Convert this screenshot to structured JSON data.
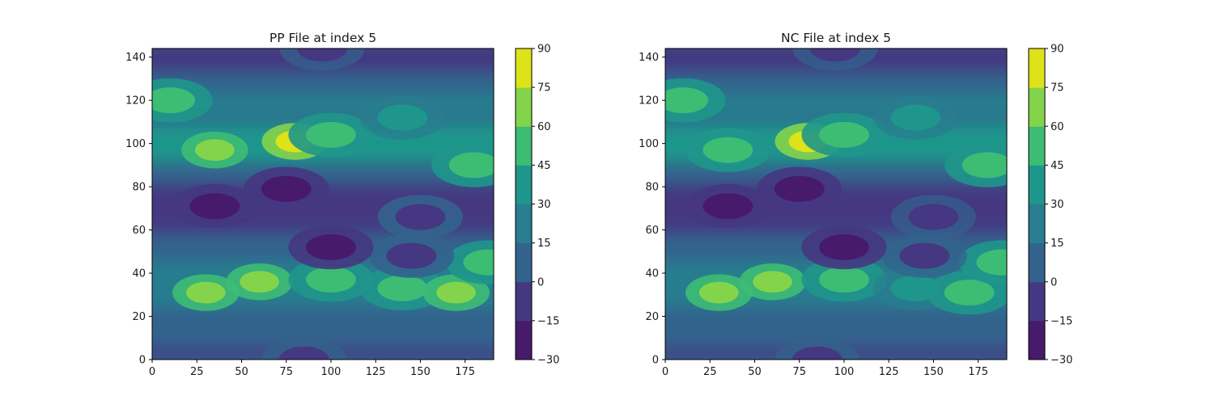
{
  "chart_data": [
    {
      "type": "heatmap",
      "subtype": "filled-contour",
      "title": "PP File at index 5",
      "xlabel": "",
      "ylabel": "",
      "xlim": [
        0,
        191
      ],
      "ylim": [
        0,
        144
      ],
      "xticks": [
        0,
        25,
        50,
        75,
        100,
        125,
        150,
        175
      ],
      "yticks": [
        0,
        20,
        40,
        60,
        80,
        100,
        120,
        140
      ],
      "colorbar": {
        "levels": [
          -30,
          -15,
          0,
          15,
          30,
          45,
          60,
          75,
          90
        ],
        "tick_labels": [
          "−30",
          "−15",
          "0",
          "15",
          "30",
          "45",
          "60",
          "75",
          "90"
        ],
        "colors": [
          "#481a6c",
          "#453781",
          "#33638d",
          "#287d8e",
          "#1f968b",
          "#3dbc74",
          "#84d44b",
          "#dde318"
        ]
      },
      "features": [
        {
          "x": 35,
          "y": 97,
          "value": 60
        },
        {
          "x": 80,
          "y": 101,
          "value": 80
        },
        {
          "x": 100,
          "y": 104,
          "value": 55
        },
        {
          "x": 140,
          "y": 112,
          "value": 40
        },
        {
          "x": 10,
          "y": 120,
          "value": 55
        },
        {
          "x": 180,
          "y": 90,
          "value": 50
        },
        {
          "x": 35,
          "y": 71,
          "value": -25
        },
        {
          "x": 75,
          "y": 79,
          "value": -25
        },
        {
          "x": 150,
          "y": 66,
          "value": -15
        },
        {
          "x": 30,
          "y": 31,
          "value": 70
        },
        {
          "x": 60,
          "y": 36,
          "value": 65
        },
        {
          "x": 100,
          "y": 37,
          "value": 50
        },
        {
          "x": 140,
          "y": 33,
          "value": 45
        },
        {
          "x": 170,
          "y": 31,
          "value": 60
        },
        {
          "x": 188,
          "y": 45,
          "value": 55
        },
        {
          "x": 145,
          "y": 48,
          "value": -15
        },
        {
          "x": 100,
          "y": 52,
          "value": -25
        },
        {
          "x": 95,
          "y": 144,
          "value": -10
        },
        {
          "x": 85,
          "y": 0,
          "value": -10
        }
      ]
    },
    {
      "type": "heatmap",
      "subtype": "filled-contour",
      "title": "NC File at index 5",
      "xlabel": "",
      "ylabel": "",
      "xlim": [
        0,
        191
      ],
      "ylim": [
        0,
        144
      ],
      "xticks": [
        0,
        25,
        50,
        75,
        100,
        125,
        150,
        175
      ],
      "yticks": [
        0,
        20,
        40,
        60,
        80,
        100,
        120,
        140
      ],
      "colorbar": {
        "levels": [
          -30,
          -15,
          0,
          15,
          30,
          45,
          60,
          75,
          90
        ],
        "tick_labels": [
          "−30",
          "−15",
          "0",
          "15",
          "30",
          "45",
          "60",
          "75",
          "90"
        ],
        "colors": [
          "#481a6c",
          "#453781",
          "#33638d",
          "#287d8e",
          "#1f968b",
          "#3dbc74",
          "#84d44b",
          "#dde318"
        ]
      },
      "features": [
        {
          "x": 35,
          "y": 97,
          "value": 58
        },
        {
          "x": 80,
          "y": 101,
          "value": 78
        },
        {
          "x": 100,
          "y": 104,
          "value": 53
        },
        {
          "x": 140,
          "y": 112,
          "value": 40
        },
        {
          "x": 10,
          "y": 120,
          "value": 53
        },
        {
          "x": 180,
          "y": 90,
          "value": 48
        },
        {
          "x": 35,
          "y": 71,
          "value": -24
        },
        {
          "x": 75,
          "y": 79,
          "value": -24
        },
        {
          "x": 150,
          "y": 66,
          "value": -14
        },
        {
          "x": 30,
          "y": 31,
          "value": 68
        },
        {
          "x": 60,
          "y": 36,
          "value": 66
        },
        {
          "x": 100,
          "y": 37,
          "value": 48
        },
        {
          "x": 140,
          "y": 33,
          "value": 43
        },
        {
          "x": 170,
          "y": 31,
          "value": 58
        },
        {
          "x": 188,
          "y": 45,
          "value": 53
        },
        {
          "x": 145,
          "y": 48,
          "value": -14
        },
        {
          "x": 100,
          "y": 52,
          "value": -24
        },
        {
          "x": 95,
          "y": 144,
          "value": -10
        },
        {
          "x": 85,
          "y": 0,
          "value": -10
        }
      ]
    }
  ]
}
